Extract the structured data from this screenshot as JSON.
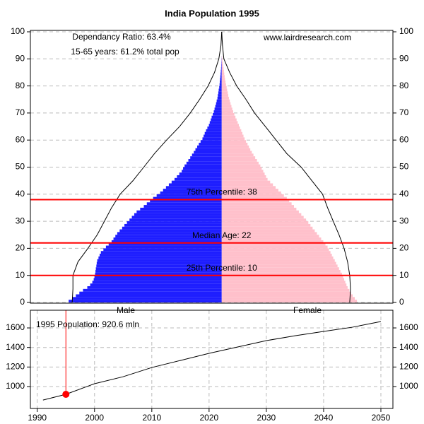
{
  "chart_data": [
    {
      "type": "pyramid",
      "title": "India Population 1995",
      "annotations": [
        "Dependancy Ratio: 63.4%",
        "15-65 years: 61.2% total pop",
        "www.lairdresearch.com"
      ],
      "xlim": [
        -15.2,
        13.6
      ],
      "ylim": [
        0,
        100
      ],
      "yticks": [
        0,
        10,
        20,
        30,
        40,
        50,
        60,
        70,
        80,
        90,
        100
      ],
      "grid": true,
      "series": [
        {
          "name": "Male",
          "color": "#1e1eff",
          "y": [
            0,
            1,
            2,
            3,
            4,
            5,
            6,
            7,
            8,
            9,
            10,
            11,
            12,
            13,
            14,
            15,
            16,
            17,
            18,
            19,
            20,
            21,
            22,
            23,
            24,
            25,
            26,
            27,
            28,
            29,
            30,
            31,
            32,
            33,
            34,
            35,
            36,
            37,
            38,
            39,
            40,
            41,
            42,
            43,
            44,
            45,
            46,
            47,
            48,
            49,
            50,
            51,
            52,
            53,
            54,
            55,
            56,
            57,
            58,
            59,
            60,
            61,
            62,
            63,
            64,
            65,
            66,
            67,
            68,
            69,
            70,
            71,
            72,
            73,
            74,
            75,
            76,
            77,
            78,
            79,
            80,
            81,
            82,
            83,
            84,
            85,
            86,
            87,
            88,
            89,
            90,
            91,
            92,
            93,
            94,
            95,
            96,
            97,
            98,
            99,
            100
          ],
          "values": [
            12.16,
            11.88,
            11.59,
            11.31,
            11.02,
            10.68,
            10.45,
            10.28,
            10.17,
            10.11,
            10.06,
            10.03,
            10.0,
            9.96,
            9.93,
            9.89,
            9.79,
            9.7,
            9.6,
            9.4,
            9.2,
            8.98,
            8.75,
            8.6,
            8.45,
            8.3,
            8.11,
            7.91,
            7.73,
            7.53,
            7.33,
            7.14,
            6.95,
            6.76,
            6.48,
            6.19,
            5.95,
            5.7,
            5.45,
            5.17,
            4.89,
            4.66,
            4.43,
            4.2,
            3.98,
            3.75,
            3.56,
            3.37,
            3.18,
            3.07,
            2.95,
            2.8,
            2.65,
            2.5,
            2.36,
            2.22,
            2.09,
            1.95,
            1.82,
            1.68,
            1.53,
            1.44,
            1.35,
            1.25,
            1.14,
            1.02,
            0.95,
            0.87,
            0.8,
            0.71,
            0.63,
            0.57,
            0.51,
            0.45,
            0.4,
            0.34,
            0.31,
            0.27,
            0.24,
            0.2,
            0.17,
            0.15,
            0.13,
            0.11,
            0.09,
            0.07,
            0.05,
            0.04,
            0.03,
            0.02,
            0.01,
            0,
            0,
            0,
            0,
            0,
            0,
            0,
            0,
            0,
            0
          ]
        },
        {
          "name": "Female",
          "color": "#ffc0cb",
          "y": [
            0,
            1,
            2,
            3,
            4,
            5,
            6,
            7,
            8,
            9,
            10,
            11,
            12,
            13,
            14,
            15,
            16,
            17,
            18,
            19,
            20,
            21,
            22,
            23,
            24,
            25,
            26,
            27,
            28,
            29,
            30,
            31,
            32,
            33,
            34,
            35,
            36,
            37,
            38,
            39,
            40,
            41,
            42,
            43,
            44,
            45,
            46,
            47,
            48,
            49,
            50,
            51,
            52,
            53,
            54,
            55,
            56,
            57,
            58,
            59,
            60,
            61,
            62,
            63,
            64,
            65,
            66,
            67,
            68,
            69,
            70,
            71,
            72,
            73,
            74,
            75,
            76,
            77,
            78,
            79,
            80,
            81,
            82,
            83,
            84,
            85,
            86,
            87,
            88,
            89,
            90,
            91,
            92,
            93,
            94,
            95,
            96,
            97,
            98,
            99,
            100
          ],
          "values": [
            10.74,
            10.57,
            10.4,
            10.28,
            10.14,
            10.0,
            9.91,
            9.82,
            9.73,
            9.64,
            9.55,
            9.43,
            9.32,
            9.2,
            9.09,
            8.98,
            8.86,
            8.75,
            8.64,
            8.52,
            8.41,
            8.24,
            8.07,
            7.9,
            7.73,
            7.56,
            7.39,
            7.22,
            7.05,
            6.88,
            6.7,
            6.51,
            6.32,
            6.13,
            5.93,
            5.74,
            5.55,
            5.36,
            5.17,
            4.94,
            4.72,
            4.5,
            4.28,
            4.07,
            3.85,
            3.64,
            3.52,
            3.41,
            3.3,
            3.18,
            3.07,
            2.93,
            2.8,
            2.66,
            2.52,
            2.39,
            2.27,
            2.16,
            2.05,
            1.93,
            1.82,
            1.73,
            1.64,
            1.55,
            1.45,
            1.36,
            1.27,
            1.18,
            1.09,
            1.0,
            0.91,
            0.84,
            0.77,
            0.7,
            0.64,
            0.57,
            0.52,
            0.48,
            0.43,
            0.39,
            0.34,
            0.3,
            0.26,
            0.23,
            0.2,
            0.17,
            0.14,
            0.11,
            0.09,
            0.06,
            0.03,
            0,
            0,
            0,
            0,
            0,
            0,
            0,
            0,
            0,
            0
          ]
        }
      ],
      "outline_male": {
        "color": "#000000",
        "y": [
          0,
          5,
          10,
          15,
          20,
          25,
          30,
          35,
          40,
          45,
          50,
          55,
          60,
          65,
          70,
          75,
          80,
          85,
          90,
          95,
          100
        ],
        "values": [
          11.88,
          11.82,
          11.82,
          11.42,
          10.63,
          9.89,
          9.32,
          8.75,
          8.07,
          7.05,
          6.19,
          5.34,
          4.38,
          3.35,
          2.5,
          1.76,
          1.08,
          0.57,
          0.23,
          0.06,
          0
        ]
      },
      "outline_female": {
        "color": "#000000",
        "y": [
          0,
          5,
          10,
          15,
          20,
          25,
          30,
          35,
          40,
          45,
          50,
          55,
          60,
          65,
          70,
          75,
          80,
          85,
          90,
          95,
          100
        ],
        "values": [
          10.17,
          10.23,
          10.17,
          10.0,
          9.72,
          9.32,
          8.86,
          8.41,
          8.01,
          7.16,
          6.31,
          5.17,
          4.32,
          3.47,
          2.61,
          1.93,
          1.19,
          0.63,
          0.17,
          0.06,
          0
        ]
      },
      "percentiles": [
        {
          "label": "25th Percentile: 10",
          "value": 10
        },
        {
          "label": "Median Age: 22",
          "value": 22
        },
        {
          "label": "75th Percentile: 38",
          "value": 38
        }
      ],
      "percentile_color": "#ff0000"
    },
    {
      "type": "line",
      "x": [
        1991,
        1995,
        2000,
        2005,
        2010,
        2015,
        2020,
        2025,
        2030,
        2035,
        2040,
        2045,
        2050
      ],
      "values": [
        862,
        920.6,
        1029,
        1101,
        1195,
        1267,
        1340,
        1405,
        1470,
        1520,
        1564,
        1607,
        1665
      ],
      "color": "#000000",
      "xlim": [
        1988.8,
        2052.1
      ],
      "ylim": [
        776,
        1781
      ],
      "xticks": [
        1990,
        2000,
        2010,
        2020,
        2030,
        2040,
        2050
      ],
      "yticks": [
        1000,
        1200,
        1400,
        1600
      ],
      "grid": true,
      "highlight": {
        "x": 1995,
        "value": 920.6,
        "label": "1995 Population: 920.6 mln",
        "color": "#ff0000"
      }
    }
  ]
}
